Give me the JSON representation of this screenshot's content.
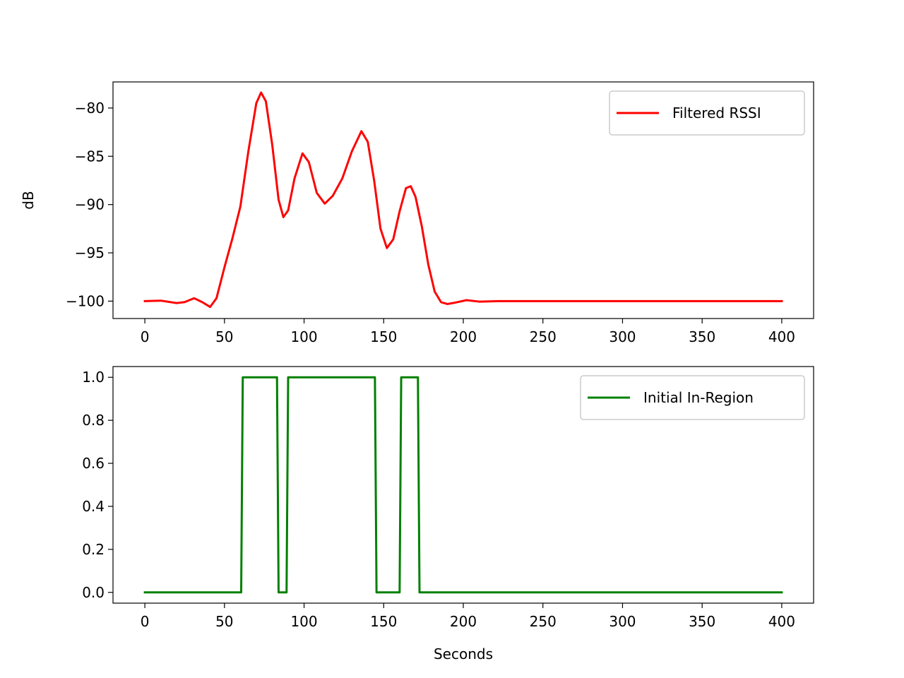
{
  "chart_data": [
    {
      "type": "line",
      "title": "",
      "xlabel": "",
      "ylabel": "dB",
      "xlim": [
        -20,
        420
      ],
      "ylim": [
        -101.8,
        -77.3
      ],
      "xticks": [
        0,
        50,
        100,
        150,
        200,
        250,
        300,
        350,
        400
      ],
      "yticks": [
        -100,
        -95,
        -90,
        -85,
        -80
      ],
      "xtick_labels": [
        "0",
        "50",
        "100",
        "150",
        "200",
        "250",
        "300",
        "350",
        "400"
      ],
      "ytick_labels": [
        "−100",
        "−95",
        "−90",
        "−85",
        "−80"
      ],
      "grid": false,
      "legend": "top-right",
      "series": [
        {
          "name": "Filtered RSSI",
          "color": "#ff0000",
          "x": [
            0,
            10,
            20,
            25,
            31,
            36,
            41,
            45,
            50,
            55,
            60,
            65,
            70,
            73,
            76,
            80,
            84,
            87,
            90,
            94,
            99,
            103,
            108,
            113,
            118,
            124,
            130,
            136,
            140,
            144,
            148,
            152,
            156,
            160,
            164,
            167,
            170,
            174,
            178,
            182,
            186,
            190,
            195,
            202,
            210,
            222,
            240,
            300,
            350,
            400
          ],
          "y": [
            -100,
            -99.95,
            -100.2,
            -100.1,
            -99.7,
            -100.1,
            -100.6,
            -99.7,
            -96.5,
            -93.5,
            -90.2,
            -84.5,
            -79.5,
            -78.4,
            -79.3,
            -83.8,
            -89.5,
            -91.3,
            -90.6,
            -87.3,
            -84.7,
            -85.6,
            -88.8,
            -89.9,
            -89.1,
            -87.3,
            -84.5,
            -82.4,
            -83.5,
            -87.5,
            -92.5,
            -94.5,
            -93.6,
            -90.7,
            -88.3,
            -88.1,
            -89.2,
            -92.3,
            -96.2,
            -99,
            -100.1,
            -100.3,
            -100.15,
            -99.9,
            -100.05,
            -100,
            -100,
            -100,
            -100,
            -100
          ]
        }
      ]
    },
    {
      "type": "line",
      "title": "",
      "xlabel": "Seconds",
      "ylabel": "",
      "xlim": [
        -20,
        420
      ],
      "ylim": [
        -0.05,
        1.05
      ],
      "xticks": [
        0,
        50,
        100,
        150,
        200,
        250,
        300,
        350,
        400
      ],
      "yticks": [
        0,
        0.2,
        0.4,
        0.6,
        0.8,
        1.0
      ],
      "xtick_labels": [
        "0",
        "50",
        "100",
        "150",
        "200",
        "250",
        "300",
        "350",
        "400"
      ],
      "ytick_labels": [
        "0.0",
        "0.2",
        "0.4",
        "0.6",
        "0.8",
        "1.0"
      ],
      "grid": false,
      "legend": "top-right",
      "series": [
        {
          "name": "Initial In-Region",
          "color": "#008000",
          "x": [
            0,
            60.5,
            61.5,
            83,
            84,
            89,
            90,
            144.5,
            145.5,
            160,
            161,
            171.5,
            172.5,
            400
          ],
          "y": [
            0,
            0,
            1,
            1,
            0,
            0,
            1,
            1,
            0,
            0,
            1,
            1,
            0,
            0
          ]
        }
      ]
    }
  ]
}
